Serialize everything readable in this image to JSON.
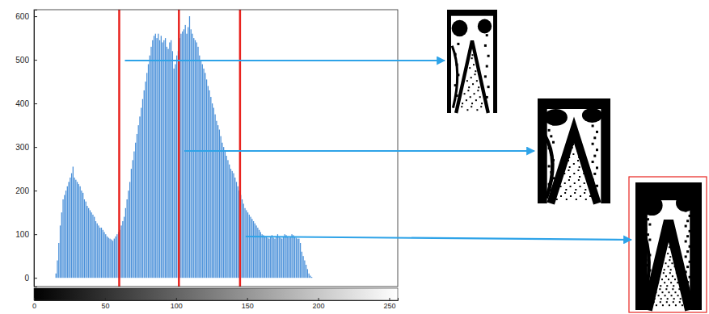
{
  "chart_data": {
    "type": "histogram",
    "color": "#4a90d9",
    "grid": false,
    "xlim": [
      0,
      256
    ],
    "ylim": [
      -20,
      615
    ],
    "xticks": [
      0,
      50,
      100,
      150,
      200,
      250
    ],
    "yticks": [
      0,
      100,
      200,
      300,
      400,
      500,
      600
    ],
    "thresholds": [
      60,
      102,
      145
    ],
    "bins": [
      0,
      1,
      2,
      3,
      4,
      5,
      6,
      7,
      8,
      9,
      10,
      11,
      12,
      13,
      14,
      15,
      16,
      17,
      18,
      19,
      20,
      21,
      22,
      23,
      24,
      25,
      26,
      27,
      28,
      29,
      30,
      31,
      32,
      33,
      34,
      35,
      36,
      37,
      38,
      39,
      40,
      41,
      42,
      43,
      44,
      45,
      46,
      47,
      48,
      49,
      50,
      51,
      52,
      53,
      54,
      55,
      56,
      57,
      58,
      59,
      60,
      61,
      62,
      63,
      64,
      65,
      66,
      67,
      68,
      69,
      70,
      71,
      72,
      73,
      74,
      75,
      76,
      77,
      78,
      79,
      80,
      81,
      82,
      83,
      84,
      85,
      86,
      87,
      88,
      89,
      90,
      91,
      92,
      93,
      94,
      95,
      96,
      97,
      98,
      99,
      100,
      101,
      102,
      103,
      104,
      105,
      106,
      107,
      108,
      109,
      110,
      111,
      112,
      113,
      114,
      115,
      116,
      117,
      118,
      119,
      120,
      121,
      122,
      123,
      124,
      125,
      126,
      127,
      128,
      129,
      130,
      131,
      132,
      133,
      134,
      135,
      136,
      137,
      138,
      139,
      140,
      141,
      142,
      143,
      144,
      145,
      146,
      147,
      148,
      149,
      150,
      151,
      152,
      153,
      154,
      155,
      156,
      157,
      158,
      159,
      160,
      161,
      162,
      163,
      164,
      165,
      166,
      167,
      168,
      169,
      170,
      171,
      172,
      173,
      174,
      175,
      176,
      177,
      178,
      179,
      180,
      181,
      182,
      183,
      184,
      185,
      186,
      187,
      188,
      189,
      190,
      191,
      192,
      193,
      194,
      195,
      196,
      197,
      198,
      199,
      200,
      201,
      202,
      203,
      204,
      205,
      206,
      207,
      208,
      209,
      210,
      211,
      212,
      213,
      214,
      215,
      216,
      217,
      218,
      219,
      220,
      221,
      222,
      223,
      224,
      225,
      226,
      227,
      228,
      229,
      230,
      231,
      232,
      233,
      234,
      235,
      236,
      237,
      238,
      239,
      240,
      241,
      242,
      243,
      244,
      245,
      246,
      247,
      248,
      249,
      250,
      251,
      252,
      253,
      254,
      255,
      256
    ],
    "counts": [
      0,
      0,
      0,
      0,
      0,
      0,
      0,
      0,
      0,
      0,
      0,
      0,
      0,
      0,
      0,
      10,
      40,
      80,
      120,
      150,
      180,
      190,
      200,
      210,
      220,
      230,
      240,
      255,
      230,
      225,
      220,
      215,
      210,
      200,
      195,
      180,
      175,
      165,
      160,
      155,
      150,
      145,
      140,
      130,
      125,
      120,
      115,
      115,
      110,
      105,
      100,
      95,
      92,
      90,
      88,
      85,
      90,
      95,
      100,
      105,
      110,
      120,
      130,
      140,
      160,
      180,
      200,
      220,
      250,
      270,
      290,
      310,
      330,
      350,
      370,
      390,
      410,
      430,
      450,
      470,
      490,
      510,
      530,
      545,
      555,
      560,
      550,
      560,
      545,
      555,
      540,
      545,
      550,
      530,
      525,
      540,
      545,
      520,
      480,
      490,
      510,
      520,
      550,
      560,
      565,
      570,
      580,
      560,
      575,
      600,
      570,
      560,
      550,
      545,
      540,
      530,
      510,
      500,
      490,
      480,
      470,
      455,
      440,
      430,
      415,
      400,
      390,
      375,
      360,
      350,
      340,
      325,
      310,
      300,
      290,
      280,
      270,
      260,
      250,
      245,
      240,
      230,
      220,
      210,
      200,
      190,
      180,
      170,
      160,
      155,
      150,
      145,
      140,
      135,
      130,
      125,
      120,
      115,
      110,
      105,
      100,
      98,
      95,
      95,
      92,
      90,
      95,
      98,
      92,
      90,
      95,
      100,
      95,
      92,
      90,
      95,
      100,
      98,
      95,
      92,
      95,
      100,
      98,
      95,
      92,
      90,
      90,
      80,
      60,
      50,
      40,
      30,
      20,
      10,
      5,
      2,
      0,
      0,
      0,
      0,
      0,
      0,
      0,
      0,
      0,
      0,
      0,
      0,
      0,
      0,
      0,
      0,
      0,
      0,
      0,
      0,
      0,
      0,
      0,
      0,
      0,
      0,
      0,
      0,
      0,
      0,
      0,
      0,
      0,
      0,
      0,
      0,
      0,
      0,
      0,
      0,
      0,
      0,
      0,
      0,
      0,
      0,
      0,
      0,
      0,
      0,
      0,
      0,
      0,
      0,
      0,
      0,
      0,
      0,
      0,
      0
    ]
  }
}
